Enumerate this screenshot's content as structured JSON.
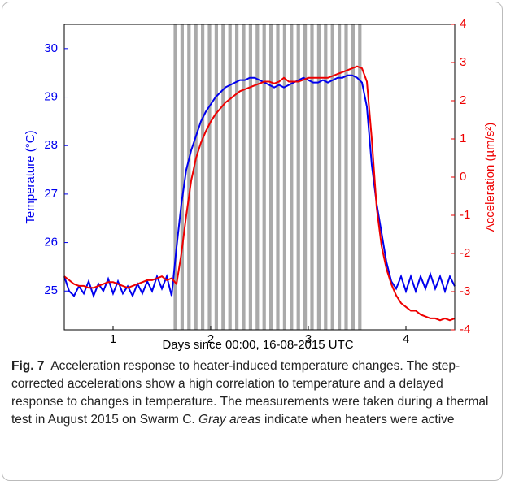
{
  "chart_data": {
    "type": "line",
    "xlabel": "Days since 00:00, 16-08-2015 UTC",
    "ylabel": "Temperature (°C)",
    "y2label": "Acceleration (µm/s²)",
    "xlim": [
      0.5,
      4.5
    ],
    "xticks": [
      1,
      2,
      3,
      4
    ],
    "ylim": [
      24.2,
      30.5
    ],
    "yticks": [
      25,
      26,
      27,
      28,
      29,
      30
    ],
    "y2lim": [
      -4,
      4
    ],
    "y2ticks": [
      -4,
      -3,
      -2,
      -1,
      0,
      1,
      2,
      3,
      4
    ],
    "heater_color": "#aaaaaa",
    "heater_intervals": [
      [
        1.62,
        1.655
      ],
      [
        1.69,
        1.725
      ],
      [
        1.76,
        1.795
      ],
      [
        1.83,
        1.865
      ],
      [
        1.9,
        1.935
      ],
      [
        1.97,
        2.005
      ],
      [
        2.04,
        2.075
      ],
      [
        2.11,
        2.145
      ],
      [
        2.18,
        2.215
      ],
      [
        2.25,
        2.285
      ],
      [
        2.32,
        2.355
      ],
      [
        2.39,
        2.425
      ],
      [
        2.46,
        2.495
      ],
      [
        2.53,
        2.565
      ],
      [
        2.6,
        2.635
      ],
      [
        2.67,
        2.705
      ],
      [
        2.74,
        2.775
      ],
      [
        2.81,
        2.845
      ],
      [
        2.88,
        2.915
      ],
      [
        2.95,
        2.985
      ],
      [
        3.02,
        3.055
      ],
      [
        3.09,
        3.125
      ],
      [
        3.16,
        3.195
      ],
      [
        3.23,
        3.265
      ],
      [
        3.3,
        3.335
      ],
      [
        3.37,
        3.405
      ],
      [
        3.44,
        3.475
      ],
      [
        3.51,
        3.545
      ]
    ],
    "x": [
      0.5,
      0.55,
      0.6,
      0.65,
      0.7,
      0.75,
      0.8,
      0.85,
      0.9,
      0.95,
      1.0,
      1.05,
      1.1,
      1.15,
      1.2,
      1.25,
      1.3,
      1.35,
      1.4,
      1.45,
      1.5,
      1.55,
      1.6,
      1.65,
      1.7,
      1.75,
      1.8,
      1.85,
      1.9,
      1.95,
      2.0,
      2.05,
      2.1,
      2.15,
      2.2,
      2.25,
      2.3,
      2.35,
      2.4,
      2.45,
      2.5,
      2.55,
      2.6,
      2.65,
      2.7,
      2.75,
      2.8,
      2.85,
      2.9,
      2.95,
      3.0,
      3.05,
      3.1,
      3.15,
      3.2,
      3.25,
      3.3,
      3.35,
      3.4,
      3.45,
      3.5,
      3.55,
      3.6,
      3.65,
      3.7,
      3.75,
      3.8,
      3.85,
      3.9,
      3.95,
      4.0,
      4.05,
      4.1,
      4.15,
      4.2,
      4.25,
      4.3,
      4.35,
      4.4,
      4.45,
      4.5
    ],
    "series": [
      {
        "color": "#0000ee",
        "values": [
          25.3,
          25.0,
          24.9,
          25.1,
          24.95,
          25.2,
          24.9,
          25.15,
          25.0,
          25.25,
          24.95,
          25.2,
          24.95,
          25.1,
          24.9,
          25.15,
          24.95,
          25.2,
          25.0,
          25.3,
          25.05,
          25.3,
          24.9,
          25.9,
          26.8,
          27.5,
          27.9,
          28.2,
          28.5,
          28.7,
          28.85,
          29.0,
          29.1,
          29.2,
          29.25,
          29.3,
          29.35,
          29.35,
          29.4,
          29.4,
          29.35,
          29.3,
          29.25,
          29.2,
          29.25,
          29.2,
          29.25,
          29.3,
          29.35,
          29.4,
          29.35,
          29.3,
          29.3,
          29.35,
          29.3,
          29.35,
          29.4,
          29.4,
          29.45,
          29.45,
          29.4,
          29.3,
          28.8,
          27.6,
          26.8,
          26.2,
          25.6,
          25.2,
          25.05,
          25.3,
          25.0,
          25.3,
          25.0,
          25.3,
          25.05,
          25.35,
          25.05,
          25.3,
          25.0,
          25.3,
          25.1
        ]
      },
      {
        "color": "#ee0000",
        "axis": "y2",
        "values": [
          -2.6,
          -2.7,
          -2.8,
          -2.85,
          -2.85,
          -2.9,
          -2.9,
          -2.85,
          -2.8,
          -2.75,
          -2.75,
          -2.8,
          -2.85,
          -2.9,
          -2.85,
          -2.8,
          -2.75,
          -2.7,
          -2.7,
          -2.65,
          -2.6,
          -2.7,
          -2.65,
          -2.8,
          -2.0,
          -1.0,
          -0.1,
          0.5,
          0.9,
          1.2,
          1.45,
          1.65,
          1.8,
          1.95,
          2.05,
          2.15,
          2.25,
          2.3,
          2.35,
          2.4,
          2.45,
          2.5,
          2.5,
          2.45,
          2.5,
          2.6,
          2.5,
          2.5,
          2.5,
          2.55,
          2.6,
          2.6,
          2.6,
          2.6,
          2.6,
          2.65,
          2.7,
          2.75,
          2.8,
          2.85,
          2.9,
          2.85,
          2.5,
          1.0,
          -0.8,
          -1.8,
          -2.4,
          -2.8,
          -3.1,
          -3.3,
          -3.4,
          -3.5,
          -3.5,
          -3.6,
          -3.65,
          -3.7,
          -3.7,
          -3.75,
          -3.7,
          -3.75,
          -3.7
        ]
      }
    ]
  },
  "caption": {
    "label": "Fig. 7",
    "text_before": "Acceleration response to heater-induced temperature changes. The step-corrected accelerations show a high correlation to temperature and a delayed response to changes in temperature. The measurements were taken during a thermal test in August 2015 on Swarm C.",
    "italic": "Gray areas",
    "text_after": "indicate when heaters were active"
  }
}
